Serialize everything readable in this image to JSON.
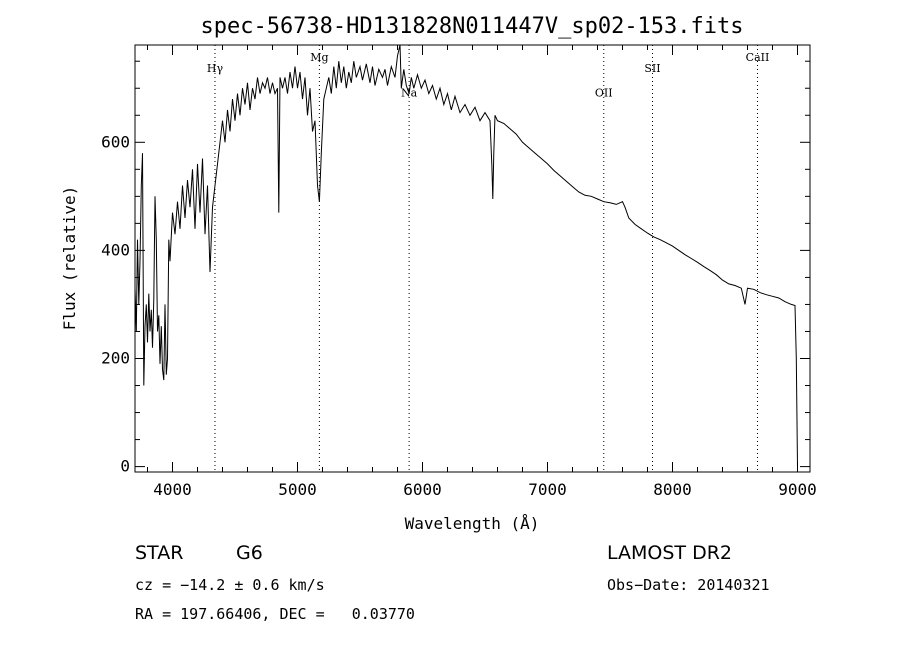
{
  "chart_data": {
    "type": "line",
    "title": "spec-56738-HD131828N011447V_sp02-153.fits",
    "xlabel": "Wavelength (Å)",
    "ylabel": "Flux (relative)",
    "xlim": [
      3700,
      9100
    ],
    "ylim": [
      -10,
      780
    ],
    "x_ticks": [
      4000,
      5000,
      6000,
      7000,
      8000,
      9000
    ],
    "x_tick_labels": [
      "4000",
      "5000",
      "6000",
      "7000",
      "8000",
      "9000"
    ],
    "y_ticks": [
      0,
      200,
      400,
      600
    ],
    "y_tick_labels": [
      "0",
      "200",
      "400",
      "600"
    ],
    "spectral_lines": [
      {
        "name": "Hγ",
        "wavelength": 4340,
        "label_flux": 730
      },
      {
        "name": "Mg",
        "wavelength": 5175,
        "label_flux": 750
      },
      {
        "name": "Na",
        "wavelength": 5893,
        "label_flux": 685
      },
      {
        "name": "OII",
        "wavelength": 7450,
        "label_flux": 685
      },
      {
        "name": "SII",
        "wavelength": 7840,
        "label_flux": 730
      },
      {
        "name": "CaII",
        "wavelength": 8680,
        "label_flux": 750
      }
    ],
    "series": [
      {
        "name": "flux",
        "points": [
          [
            3700,
            330
          ],
          [
            3710,
            250
          ],
          [
            3720,
            420
          ],
          [
            3730,
            300
          ],
          [
            3740,
            380
          ],
          [
            3750,
            520
          ],
          [
            3760,
            580
          ],
          [
            3770,
            150
          ],
          [
            3780,
            260
          ],
          [
            3790,
            300
          ],
          [
            3800,
            230
          ],
          [
            3810,
            320
          ],
          [
            3820,
            250
          ],
          [
            3830,
            290
          ],
          [
            3840,
            220
          ],
          [
            3850,
            310
          ],
          [
            3860,
            500
          ],
          [
            3870,
            420
          ],
          [
            3880,
            250
          ],
          [
            3890,
            280
          ],
          [
            3900,
            190
          ],
          [
            3910,
            260
          ],
          [
            3920,
            180
          ],
          [
            3930,
            160
          ],
          [
            3940,
            300
          ],
          [
            3950,
            170
          ],
          [
            3960,
            200
          ],
          [
            3970,
            420
          ],
          [
            3980,
            380
          ],
          [
            4000,
            470
          ],
          [
            4020,
            430
          ],
          [
            4040,
            490
          ],
          [
            4060,
            440
          ],
          [
            4080,
            520
          ],
          [
            4100,
            460
          ],
          [
            4120,
            530
          ],
          [
            4140,
            480
          ],
          [
            4160,
            550
          ],
          [
            4180,
            440
          ],
          [
            4200,
            560
          ],
          [
            4220,
            470
          ],
          [
            4240,
            570
          ],
          [
            4260,
            430
          ],
          [
            4280,
            520
          ],
          [
            4300,
            360
          ],
          [
            4320,
            480
          ],
          [
            4340,
            520
          ],
          [
            4360,
            560
          ],
          [
            4380,
            600
          ],
          [
            4400,
            640
          ],
          [
            4420,
            600
          ],
          [
            4440,
            660
          ],
          [
            4460,
            620
          ],
          [
            4480,
            680
          ],
          [
            4500,
            640
          ],
          [
            4520,
            690
          ],
          [
            4540,
            650
          ],
          [
            4560,
            700
          ],
          [
            4580,
            670
          ],
          [
            4600,
            710
          ],
          [
            4620,
            660
          ],
          [
            4640,
            700
          ],
          [
            4660,
            680
          ],
          [
            4680,
            720
          ],
          [
            4700,
            690
          ],
          [
            4720,
            710
          ],
          [
            4740,
            700
          ],
          [
            4760,
            720
          ],
          [
            4780,
            690
          ],
          [
            4800,
            710
          ],
          [
            4820,
            690
          ],
          [
            4840,
            700
          ],
          [
            4850,
            470
          ],
          [
            4860,
            720
          ],
          [
            4880,
            700
          ],
          [
            4900,
            720
          ],
          [
            4920,
            690
          ],
          [
            4940,
            730
          ],
          [
            4960,
            700
          ],
          [
            4980,
            740
          ],
          [
            5000,
            700
          ],
          [
            5020,
            730
          ],
          [
            5040,
            680
          ],
          [
            5060,
            720
          ],
          [
            5080,
            650
          ],
          [
            5100,
            700
          ],
          [
            5120,
            620
          ],
          [
            5140,
            640
          ],
          [
            5160,
            520
          ],
          [
            5175,
            490
          ],
          [
            5190,
            580
          ],
          [
            5210,
            680
          ],
          [
            5230,
            700
          ],
          [
            5250,
            720
          ],
          [
            5270,
            690
          ],
          [
            5290,
            740
          ],
          [
            5310,
            700
          ],
          [
            5330,
            750
          ],
          [
            5350,
            710
          ],
          [
            5370,
            740
          ],
          [
            5390,
            700
          ],
          [
            5410,
            730
          ],
          [
            5430,
            710
          ],
          [
            5450,
            750
          ],
          [
            5470,
            720
          ],
          [
            5500,
            740
          ],
          [
            5520,
            715
          ],
          [
            5550,
            745
          ],
          [
            5580,
            710
          ],
          [
            5600,
            740
          ],
          [
            5620,
            705
          ],
          [
            5650,
            735
          ],
          [
            5680,
            720
          ],
          [
            5700,
            735
          ],
          [
            5720,
            705
          ],
          [
            5750,
            740
          ],
          [
            5780,
            720
          ],
          [
            5800,
            760
          ],
          [
            5820,
            790
          ],
          [
            5830,
            700
          ],
          [
            5850,
            735
          ],
          [
            5870,
            705
          ],
          [
            5893,
            690
          ],
          [
            5910,
            720
          ],
          [
            5930,
            700
          ],
          [
            5960,
            725
          ],
          [
            5990,
            700
          ],
          [
            6020,
            715
          ],
          [
            6050,
            690
          ],
          [
            6080,
            705
          ],
          [
            6110,
            680
          ],
          [
            6140,
            700
          ],
          [
            6170,
            670
          ],
          [
            6200,
            690
          ],
          [
            6230,
            660
          ],
          [
            6260,
            685
          ],
          [
            6300,
            655
          ],
          [
            6340,
            670
          ],
          [
            6380,
            650
          ],
          [
            6420,
            665
          ],
          [
            6460,
            640
          ],
          [
            6500,
            655
          ],
          [
            6540,
            640
          ],
          [
            6555,
            555
          ],
          [
            6562,
            495
          ],
          [
            6570,
            580
          ],
          [
            6580,
            650
          ],
          [
            6600,
            640
          ],
          [
            6650,
            635
          ],
          [
            6700,
            625
          ],
          [
            6750,
            615
          ],
          [
            6800,
            600
          ],
          [
            6850,
            590
          ],
          [
            6900,
            580
          ],
          [
            6950,
            570
          ],
          [
            7000,
            560
          ],
          [
            7050,
            548
          ],
          [
            7100,
            538
          ],
          [
            7150,
            528
          ],
          [
            7200,
            518
          ],
          [
            7250,
            508
          ],
          [
            7300,
            502
          ],
          [
            7350,
            500
          ],
          [
            7400,
            495
          ],
          [
            7450,
            490
          ],
          [
            7500,
            488
          ],
          [
            7550,
            485
          ],
          [
            7600,
            490
          ],
          [
            7620,
            480
          ],
          [
            7650,
            460
          ],
          [
            7700,
            448
          ],
          [
            7750,
            440
          ],
          [
            7800,
            432
          ],
          [
            7850,
            425
          ],
          [
            7900,
            420
          ],
          [
            7950,
            414
          ],
          [
            8000,
            408
          ],
          [
            8050,
            400
          ],
          [
            8100,
            392
          ],
          [
            8150,
            385
          ],
          [
            8200,
            378
          ],
          [
            8250,
            370
          ],
          [
            8300,
            363
          ],
          [
            8350,
            355
          ],
          [
            8400,
            345
          ],
          [
            8450,
            338
          ],
          [
            8500,
            335
          ],
          [
            8550,
            330
          ],
          [
            8580,
            300
          ],
          [
            8600,
            330
          ],
          [
            8650,
            328
          ],
          [
            8700,
            322
          ],
          [
            8750,
            318
          ],
          [
            8800,
            315
          ],
          [
            8850,
            312
          ],
          [
            8900,
            305
          ],
          [
            8950,
            300
          ],
          [
            8980,
            298
          ],
          [
            8990,
            200
          ],
          [
            9000,
            0
          ]
        ]
      }
    ]
  },
  "info": {
    "class_label": "STAR",
    "subclass": "G6",
    "survey": "LAMOST DR2",
    "velocity": "cz = −14.2 ± 0.6 km/s",
    "obs_date": "Obs−Date: 20140321",
    "coords": "RA = 197.66406, DEC =   0.03770"
  }
}
